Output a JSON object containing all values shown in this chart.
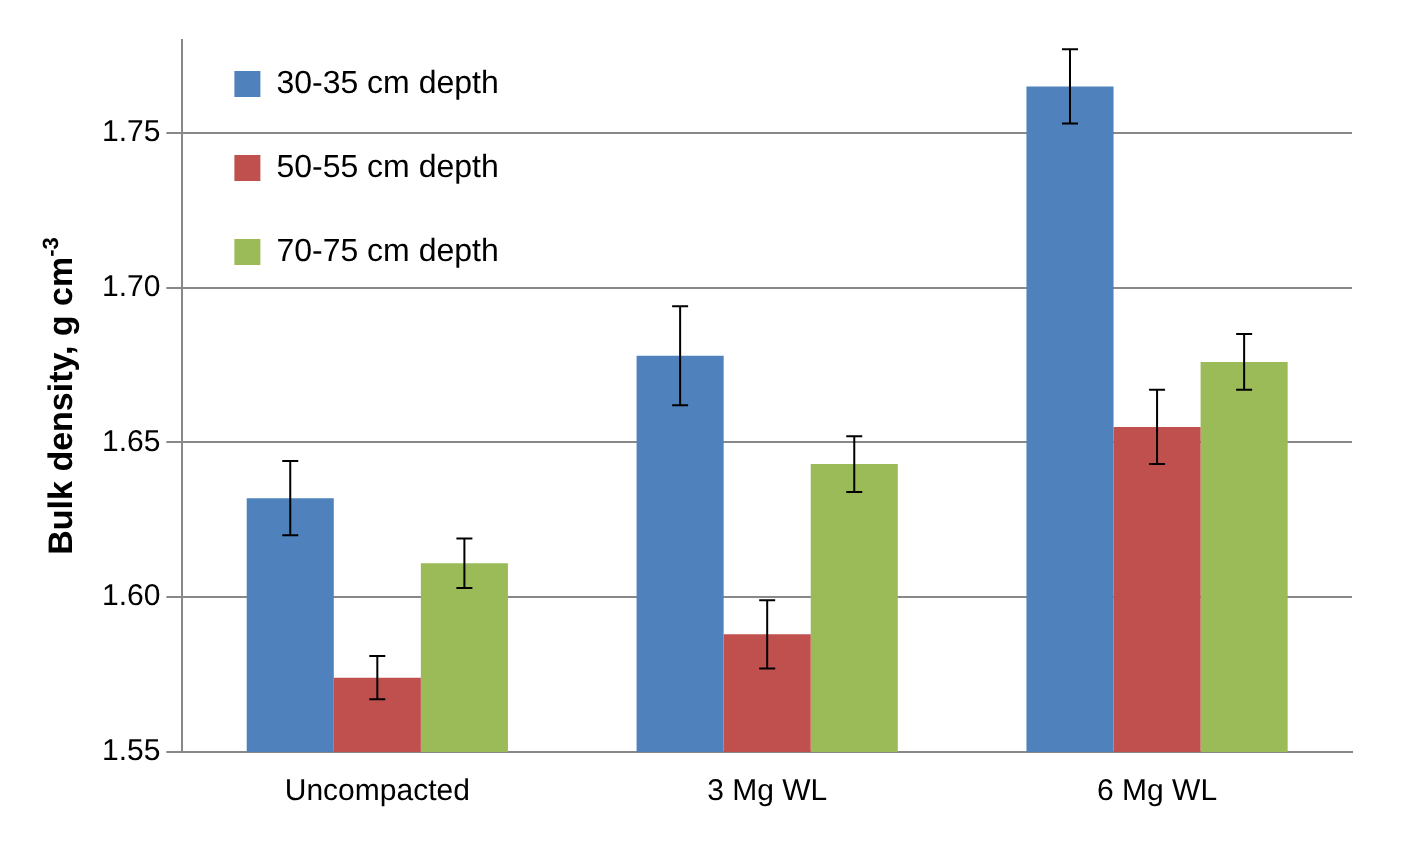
{
  "chart_data": {
    "type": "bar",
    "ylabel": "Bulk density, g cm$^{-3}$",
    "categories": [
      "Uncompacted",
      "3 Mg WL",
      "6 Mg WL"
    ],
    "series": [
      {
        "name": "30-35 cm depth",
        "color": "#4f81bd",
        "values": [
          1.632,
          1.678,
          1.765
        ],
        "errors": [
          0.012,
          0.016,
          0.012
        ]
      },
      {
        "name": "50-55 cm depth",
        "color": "#c0504d",
        "values": [
          1.574,
          1.588,
          1.655
        ],
        "errors": [
          0.007,
          0.011,
          0.012
        ]
      },
      {
        "name": "70-75 cm depth",
        "color": "#9bbb59",
        "values": [
          1.611,
          1.643,
          1.676
        ],
        "errors": [
          0.008,
          0.009,
          0.009
        ]
      }
    ],
    "ylim": [
      1.55,
      1.78
    ],
    "yticks": [
      1.55,
      {
        "value": 1.6,
        "label": "1.60"
      },
      1.65,
      {
        "value": 1.7,
        "label": "1.70"
      },
      1.75
    ],
    "grid": "y",
    "legend": "top left"
  }
}
